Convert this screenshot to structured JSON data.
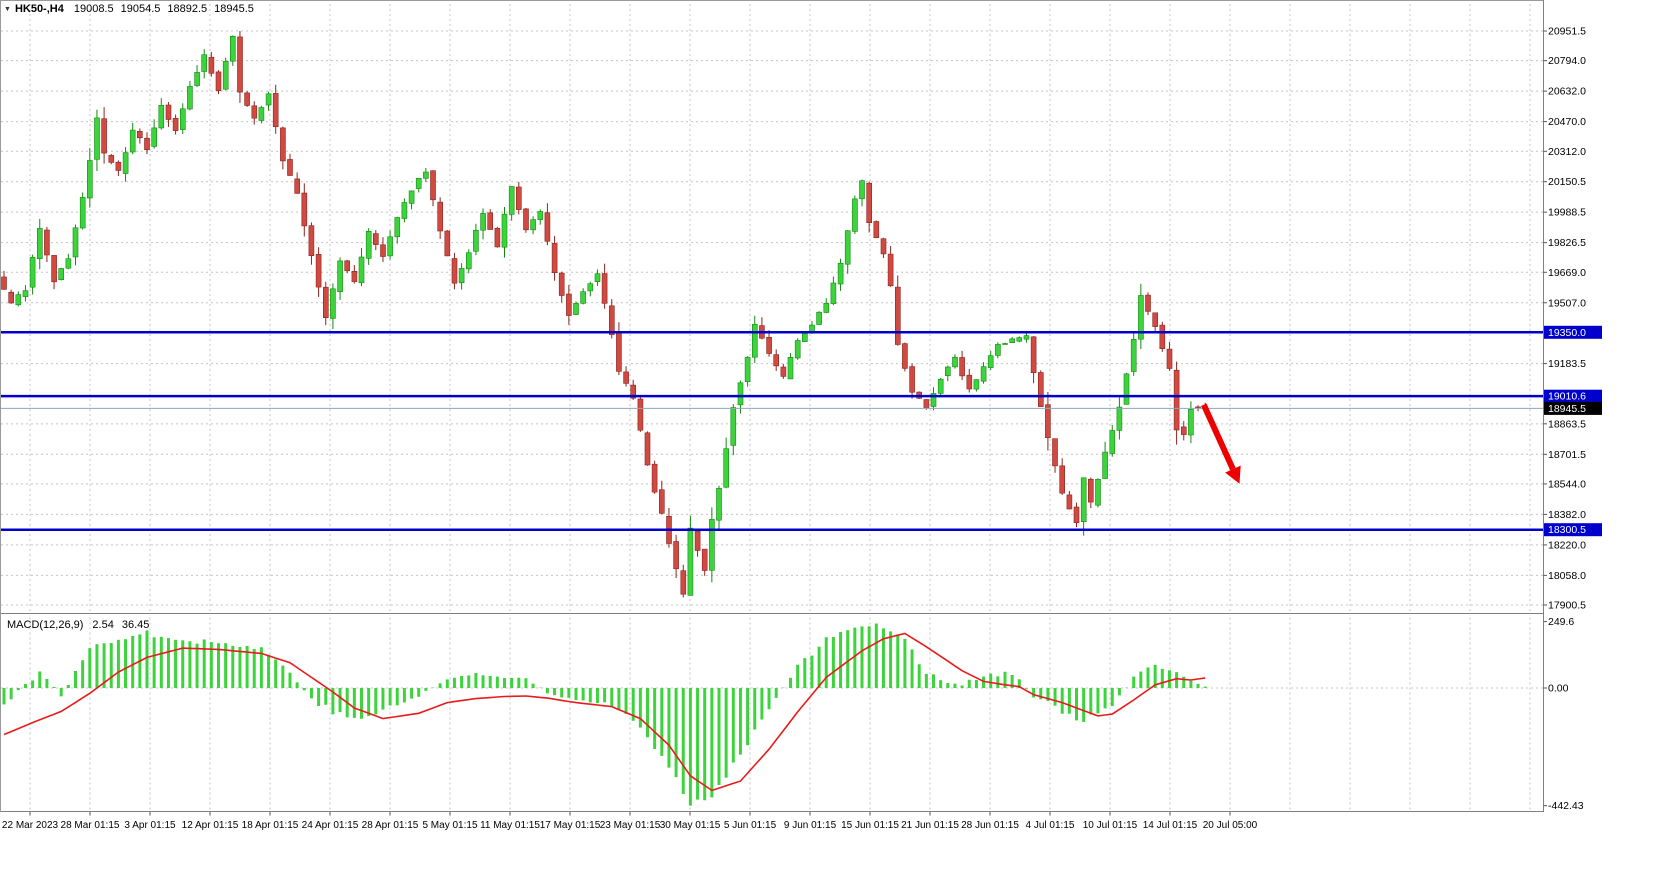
{
  "header": {
    "menu_arrow": "▼",
    "symbol_period": "HK50-,H4",
    "ohlc": {
      "open": "19008.5",
      "high": "19054.5",
      "low": "18892.5",
      "close": "18945.5"
    }
  },
  "macd_header": {
    "label": "MACD(12,26,9)",
    "main_value": "2.54",
    "signal_value": "36.45"
  },
  "chart_data": {
    "type": "candlestick",
    "symbol": "HK50-",
    "timeframe": "H4",
    "title": "HK50-,H4",
    "last_ohlc": {
      "open": 19008.5,
      "high": 19054.5,
      "low": 18892.5,
      "close": 18945.5
    },
    "price_axis": {
      "range": [
        17900.5,
        20951.5
      ],
      "tick_labels": [
        "20951.5",
        "20794.0",
        "20632.0",
        "20470.0",
        "20312.0",
        "20150.5",
        "19988.5",
        "19826.5",
        "19669.0",
        "19507.0",
        "19183.5",
        "18863.5",
        "18701.5",
        "18544.0",
        "18382.0",
        "18220.0",
        "18058.0",
        "17900.5"
      ]
    },
    "time_axis": {
      "labels": [
        "22 Mar 2023",
        "28 Mar 01:15",
        "3 Apr 01:15",
        "12 Apr 01:15",
        "18 Apr 01:15",
        "24 Apr 01:15",
        "28 Apr 01:15",
        "5 May 01:15",
        "11 May 01:15",
        "17 May 01:15",
        "23 May 01:15",
        "30 May 01:15",
        "5 Jun 01:15",
        "9 Jun 01:15",
        "15 Jun 01:15",
        "21 Jun 01:15",
        "28 Jun 01:15",
        "4 Jul 01:15",
        "10 Jul 01:15",
        "14 Jul 01:15",
        "20 Jul 05:00"
      ]
    },
    "levels": [
      {
        "price": 19350.0,
        "label": "19350.0",
        "color": "#0000cc"
      },
      {
        "price": 19010.6,
        "label": "19010.6",
        "color": "#0000cc"
      },
      {
        "price": 18300.5,
        "label": "18300.5",
        "color": "#0000cc"
      }
    ],
    "current_price": {
      "price": 18945.5,
      "label": "18945.5",
      "box_color": "#000000",
      "line_color": "#8ca6bf"
    },
    "candle_count": 169,
    "price_path": [
      [
        0,
        19640
      ],
      [
        2,
        19500
      ],
      [
        4,
        19580
      ],
      [
        6,
        19900
      ],
      [
        8,
        19620
      ],
      [
        10,
        19750
      ],
      [
        12,
        20060
      ],
      [
        14,
        20480
      ],
      [
        15,
        20300
      ],
      [
        17,
        20200
      ],
      [
        19,
        20420
      ],
      [
        21,
        20330
      ],
      [
        23,
        20560
      ],
      [
        25,
        20420
      ],
      [
        27,
        20660
      ],
      [
        29,
        20820
      ],
      [
        31,
        20640
      ],
      [
        33,
        20930
      ],
      [
        34,
        20620
      ],
      [
        36,
        20480
      ],
      [
        38,
        20620
      ],
      [
        40,
        20260
      ],
      [
        42,
        20090
      ],
      [
        44,
        19760
      ],
      [
        46,
        19430
      ],
      [
        48,
        19720
      ],
      [
        50,
        19620
      ],
      [
        52,
        19880
      ],
      [
        54,
        19760
      ],
      [
        56,
        19960
      ],
      [
        58,
        20110
      ],
      [
        60,
        20210
      ],
      [
        62,
        19890
      ],
      [
        64,
        19610
      ],
      [
        66,
        19780
      ],
      [
        68,
        19990
      ],
      [
        70,
        19810
      ],
      [
        72,
        20130
      ],
      [
        74,
        19890
      ],
      [
        76,
        19990
      ],
      [
        78,
        19670
      ],
      [
        80,
        19440
      ],
      [
        82,
        19560
      ],
      [
        84,
        19660
      ],
      [
        86,
        19340
      ],
      [
        87,
        19140
      ],
      [
        89,
        19000
      ],
      [
        91,
        18640
      ],
      [
        93,
        18380
      ],
      [
        95,
        18090
      ],
      [
        96,
        17960
      ],
      [
        97,
        18300
      ],
      [
        98,
        18190
      ],
      [
        99,
        18080
      ],
      [
        100,
        18360
      ],
      [
        101,
        18520
      ],
      [
        103,
        18960
      ],
      [
        105,
        19210
      ],
      [
        106,
        19390
      ],
      [
        108,
        19240
      ],
      [
        110,
        19110
      ],
      [
        112,
        19310
      ],
      [
        114,
        19390
      ],
      [
        116,
        19510
      ],
      [
        118,
        19720
      ],
      [
        120,
        20060
      ],
      [
        121,
        20150
      ],
      [
        122,
        19940
      ],
      [
        124,
        19760
      ],
      [
        125,
        19590
      ],
      [
        126,
        19290
      ],
      [
        128,
        19040
      ],
      [
        130,
        18950
      ],
      [
        132,
        19110
      ],
      [
        134,
        19210
      ],
      [
        136,
        19040
      ],
      [
        138,
        19160
      ],
      [
        140,
        19290
      ],
      [
        142,
        19310
      ],
      [
        144,
        19330
      ],
      [
        145,
        19140
      ],
      [
        147,
        18790
      ],
      [
        149,
        18490
      ],
      [
        151,
        18340
      ],
      [
        152,
        18570
      ],
      [
        153,
        18440
      ],
      [
        155,
        18710
      ],
      [
        157,
        18960
      ],
      [
        159,
        19310
      ],
      [
        160,
        19540
      ],
      [
        162,
        19380
      ],
      [
        164,
        19150
      ],
      [
        165,
        18840
      ],
      [
        166,
        18800
      ],
      [
        167,
        18950
      ],
      [
        168,
        18945.5
      ]
    ],
    "extremes": {
      "highest": {
        "index": 33,
        "price": 20951.5
      },
      "lowest": {
        "index": 96,
        "price": 17952.0
      }
    },
    "colors": {
      "up_fill": "#3dd33d",
      "up_stroke": "#128a12",
      "down_fill": "#d04a42",
      "down_stroke": "#8d2420",
      "grid": "#c4c4c4",
      "macd_hist": "#3dd33d",
      "macd_signal": "#e81b1b",
      "level_line": "#0000cc",
      "arrow": "#ee0000"
    },
    "macd": {
      "name": "MACD(12,26,9)",
      "values": {
        "main": 2.54,
        "signal": 36.45
      },
      "axis_tick_labels": [
        "249.6",
        "0.00",
        "-442.43"
      ],
      "range": [
        -442.43,
        249.6
      ],
      "hist_path": [
        [
          0,
          -60
        ],
        [
          3,
          15
        ],
        [
          5,
          55
        ],
        [
          8,
          -25
        ],
        [
          10,
          55
        ],
        [
          12,
          150
        ],
        [
          16,
          190
        ],
        [
          20,
          205
        ],
        [
          24,
          190
        ],
        [
          28,
          175
        ],
        [
          33,
          160
        ],
        [
          36,
          148
        ],
        [
          40,
          60
        ],
        [
          43,
          -40
        ],
        [
          46,
          -90
        ],
        [
          49,
          -120
        ],
        [
          53,
          -85
        ],
        [
          58,
          -30
        ],
        [
          62,
          35
        ],
        [
          66,
          50
        ],
        [
          70,
          40
        ],
        [
          73,
          35
        ],
        [
          76,
          -15
        ],
        [
          80,
          -42
        ],
        [
          85,
          -60
        ],
        [
          89,
          -150
        ],
        [
          93,
          -300
        ],
        [
          96,
          -440
        ],
        [
          99,
          -400
        ],
        [
          103,
          -250
        ],
        [
          107,
          -70
        ],
        [
          111,
          80
        ],
        [
          115,
          180
        ],
        [
          120,
          238
        ],
        [
          122,
          249
        ],
        [
          126,
          178
        ],
        [
          129,
          60
        ],
        [
          132,
          18
        ],
        [
          134,
          15
        ],
        [
          137,
          45
        ],
        [
          140,
          55
        ],
        [
          142,
          28
        ],
        [
          144,
          -32
        ],
        [
          148,
          -85
        ],
        [
          151,
          -125
        ],
        [
          155,
          -65
        ],
        [
          158,
          35
        ],
        [
          161,
          85
        ],
        [
          164,
          60
        ],
        [
          166,
          22
        ],
        [
          168,
          4
        ]
      ],
      "signal_path": [
        [
          0,
          -175
        ],
        [
          4,
          -130
        ],
        [
          8,
          -88
        ],
        [
          12,
          -20
        ],
        [
          16,
          60
        ],
        [
          20,
          115
        ],
        [
          25,
          150
        ],
        [
          30,
          145
        ],
        [
          36,
          130
        ],
        [
          40,
          95
        ],
        [
          43,
          40
        ],
        [
          46,
          -15
        ],
        [
          49,
          -75
        ],
        [
          53,
          -115
        ],
        [
          58,
          -95
        ],
        [
          62,
          -55
        ],
        [
          66,
          -40
        ],
        [
          70,
          -32
        ],
        [
          73,
          -30
        ],
        [
          76,
          -38
        ],
        [
          80,
          -55
        ],
        [
          85,
          -70
        ],
        [
          89,
          -115
        ],
        [
          93,
          -215
        ],
        [
          96,
          -330
        ],
        [
          99,
          -385
        ],
        [
          103,
          -350
        ],
        [
          107,
          -230
        ],
        [
          111,
          -90
        ],
        [
          115,
          40
        ],
        [
          120,
          140
        ],
        [
          123,
          185
        ],
        [
          126,
          205
        ],
        [
          129,
          155
        ],
        [
          134,
          65
        ],
        [
          137,
          25
        ],
        [
          140,
          12
        ],
        [
          142,
          5
        ],
        [
          144,
          -25
        ],
        [
          148,
          -55
        ],
        [
          151,
          -85
        ],
        [
          153,
          -105
        ],
        [
          155,
          -98
        ],
        [
          158,
          -45
        ],
        [
          161,
          12
        ],
        [
          164,
          35
        ],
        [
          166,
          30
        ],
        [
          168,
          38
        ]
      ]
    },
    "annotation_arrow": {
      "from": {
        "candle": 167.8,
        "price": 18965
      },
      "to": {
        "candle": 172.8,
        "price": 18545
      }
    }
  }
}
